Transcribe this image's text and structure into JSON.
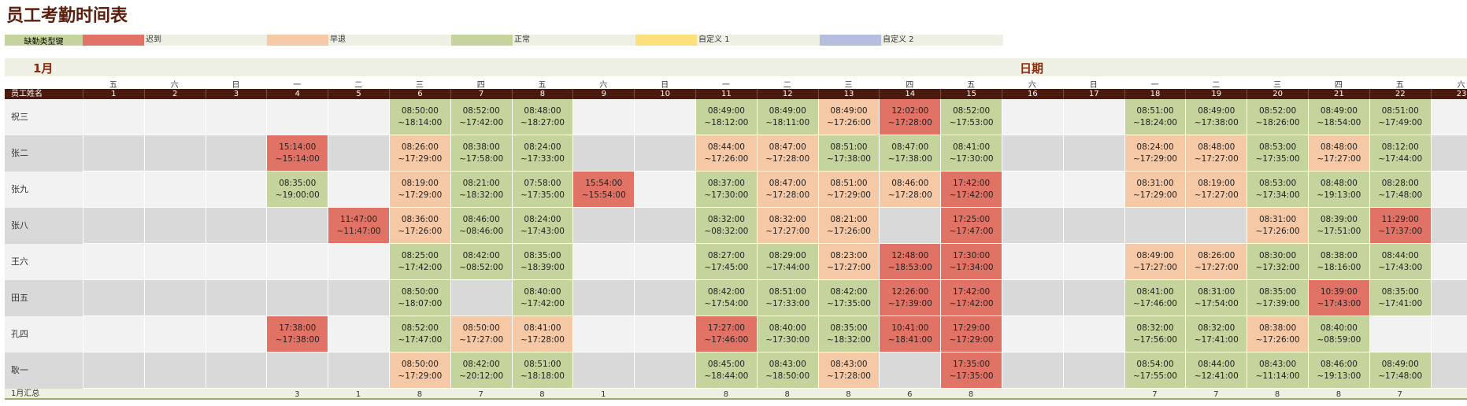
{
  "title": "员工考勤时间表",
  "legend": {
    "label": "缺勤类型键",
    "items": [
      {
        "name": "迟到",
        "color": "#e07366"
      },
      {
        "name": "早退",
        "color": "#f6c9a6"
      },
      {
        "name": "正常",
        "color": "#c4d49c"
      },
      {
        "name": "自定义 1",
        "color": "#fde07e"
      },
      {
        "name": "自定义 2",
        "color": "#b5bedd"
      }
    ]
  },
  "month": "1月",
  "date_label": "日期",
  "name_header": "员工姓名",
  "weekdays": [
    "五",
    "六",
    "日",
    "一",
    "二",
    "三",
    "四",
    "五",
    "六",
    "日",
    "一",
    "二",
    "三",
    "四",
    "五",
    "六",
    "日",
    "一",
    "二",
    "三",
    "四",
    "五",
    "六"
  ],
  "days": [
    1,
    2,
    3,
    4,
    5,
    6,
    7,
    8,
    9,
    10,
    11,
    12,
    13,
    14,
    15,
    16,
    17,
    18,
    19,
    20,
    21,
    22,
    23
  ],
  "rows": [
    {
      "name": "祝三",
      "cells": [
        null,
        null,
        null,
        null,
        null,
        {
          "in": "08:50:00",
          "out": "~18:14:00",
          "type": 2
        },
        {
          "in": "08:52:00",
          "out": "~17:42:00",
          "type": 2
        },
        {
          "in": "08:48:00",
          "out": "~18:27:00",
          "type": 2
        },
        null,
        null,
        {
          "in": "08:49:00",
          "out": "~18:12:00",
          "type": 2
        },
        {
          "in": "08:49:00",
          "out": "~18:11:00",
          "type": 2
        },
        {
          "in": "08:49:00",
          "out": "~17:26:00",
          "type": 1
        },
        {
          "in": "12:02:00",
          "out": "~17:28:00",
          "type": 0
        },
        {
          "in": "08:52:00",
          "out": "~17:53:00",
          "type": 2
        },
        null,
        null,
        {
          "in": "08:51:00",
          "out": "~18:24:00",
          "type": 2
        },
        {
          "in": "08:49:00",
          "out": "~17:38:00",
          "type": 2
        },
        {
          "in": "08:52:00",
          "out": "~18:26:00",
          "type": 2
        },
        {
          "in": "08:49:00",
          "out": "~18:54:00",
          "type": 2
        },
        {
          "in": "08:51:00",
          "out": "~17:49:00",
          "type": 2
        },
        null
      ]
    },
    {
      "name": "张二",
      "cells": [
        null,
        null,
        null,
        {
          "in": "15:14:00",
          "out": "~15:14:00",
          "type": 0
        },
        null,
        {
          "in": "08:26:00",
          "out": "~17:29:00",
          "type": 1
        },
        {
          "in": "08:38:00",
          "out": "~17:58:00",
          "type": 2
        },
        {
          "in": "08:24:00",
          "out": "~17:33:00",
          "type": 2
        },
        null,
        null,
        {
          "in": "08:44:00",
          "out": "~17:26:00",
          "type": 1
        },
        {
          "in": "08:47:00",
          "out": "~17:28:00",
          "type": 1
        },
        {
          "in": "08:51:00",
          "out": "~17:38:00",
          "type": 2
        },
        {
          "in": "08:47:00",
          "out": "~17:38:00",
          "type": 2
        },
        {
          "in": "08:41:00",
          "out": "~17:30:00",
          "type": 2
        },
        null,
        null,
        {
          "in": "08:24:00",
          "out": "~17:29:00",
          "type": 1
        },
        {
          "in": "08:48:00",
          "out": "~17:27:00",
          "type": 1
        },
        {
          "in": "08:53:00",
          "out": "~17:35:00",
          "type": 2
        },
        {
          "in": "08:48:00",
          "out": "~17:27:00",
          "type": 1
        },
        {
          "in": "08:12:00",
          "out": "~17:44:00",
          "type": 2
        },
        null
      ]
    },
    {
      "name": "张九",
      "cells": [
        null,
        null,
        null,
        {
          "in": "08:35:00",
          "out": "~19:00:00",
          "type": 2
        },
        null,
        {
          "in": "08:19:00",
          "out": "~17:29:00",
          "type": 1
        },
        {
          "in": "08:21:00",
          "out": "~18:32:00",
          "type": 2
        },
        {
          "in": "07:58:00",
          "out": "~17:35:00",
          "type": 2
        },
        {
          "in": "15:54:00",
          "out": "~15:54:00",
          "type": 0
        },
        null,
        {
          "in": "08:37:00",
          "out": "~17:30:00",
          "type": 2
        },
        {
          "in": "08:47:00",
          "out": "~17:28:00",
          "type": 1
        },
        {
          "in": "08:51:00",
          "out": "~17:29:00",
          "type": 1
        },
        {
          "in": "08:46:00",
          "out": "~17:28:00",
          "type": 1
        },
        {
          "in": "17:42:00",
          "out": "~17:42:00",
          "type": 0
        },
        null,
        null,
        {
          "in": "08:31:00",
          "out": "~17:29:00",
          "type": 1
        },
        {
          "in": "08:19:00",
          "out": "~17:27:00",
          "type": 1
        },
        {
          "in": "08:53:00",
          "out": "~17:34:00",
          "type": 2
        },
        {
          "in": "08:48:00",
          "out": "~19:13:00",
          "type": 2
        },
        {
          "in": "08:28:00",
          "out": "~17:48:00",
          "type": 2
        },
        null
      ]
    },
    {
      "name": "张八",
      "cells": [
        null,
        null,
        null,
        null,
        {
          "in": "11:47:00",
          "out": "~11:47:00",
          "type": 0
        },
        {
          "in": "08:36:00",
          "out": "~17:26:00",
          "type": 1
        },
        {
          "in": "08:46:00",
          "out": "~08:46:00",
          "type": 2
        },
        {
          "in": "08:24:00",
          "out": "~17:43:00",
          "type": 2
        },
        null,
        null,
        {
          "in": "08:32:00",
          "out": "~08:32:00",
          "type": 2
        },
        {
          "in": "08:32:00",
          "out": "~17:27:00",
          "type": 1
        },
        {
          "in": "08:21:00",
          "out": "~17:26:00",
          "type": 1
        },
        null,
        {
          "in": "17:25:00",
          "out": "~17:47:00",
          "type": 0
        },
        null,
        null,
        null,
        null,
        {
          "in": "08:31:00",
          "out": "~17:26:00",
          "type": 1
        },
        {
          "in": "08:39:00",
          "out": "~17:51:00",
          "type": 2
        },
        {
          "in": "11:29:00",
          "out": "~17:37:00",
          "type": 0
        },
        null
      ]
    },
    {
      "name": "王六",
      "cells": [
        null,
        null,
        null,
        null,
        null,
        {
          "in": "08:25:00",
          "out": "~17:42:00",
          "type": 2
        },
        {
          "in": "08:42:00",
          "out": "~08:52:00",
          "type": 2
        },
        {
          "in": "08:35:00",
          "out": "~18:39:00",
          "type": 2
        },
        null,
        null,
        {
          "in": "08:27:00",
          "out": "~17:45:00",
          "type": 2
        },
        {
          "in": "08:29:00",
          "out": "~17:44:00",
          "type": 2
        },
        {
          "in": "08:23:00",
          "out": "~17:27:00",
          "type": 1
        },
        {
          "in": "12:48:00",
          "out": "~18:53:00",
          "type": 0
        },
        {
          "in": "17:30:00",
          "out": "~17:34:00",
          "type": 0
        },
        null,
        null,
        {
          "in": "08:49:00",
          "out": "~17:27:00",
          "type": 1
        },
        {
          "in": "08:26:00",
          "out": "~17:27:00",
          "type": 1
        },
        {
          "in": "08:30:00",
          "out": "~17:32:00",
          "type": 2
        },
        {
          "in": "08:38:00",
          "out": "~18:16:00",
          "type": 2
        },
        {
          "in": "08:44:00",
          "out": "~17:43:00",
          "type": 2
        },
        null
      ]
    },
    {
      "name": "田五",
      "cells": [
        null,
        null,
        null,
        null,
        null,
        {
          "in": "08:50:00",
          "out": "~18:07:00",
          "type": 2
        },
        null,
        {
          "in": "08:40:00",
          "out": "~17:42:00",
          "type": 2
        },
        null,
        null,
        {
          "in": "08:42:00",
          "out": "~17:54:00",
          "type": 2
        },
        {
          "in": "08:51:00",
          "out": "~17:33:00",
          "type": 2
        },
        {
          "in": "08:42:00",
          "out": "~17:35:00",
          "type": 2
        },
        {
          "in": "12:26:00",
          "out": "~17:39:00",
          "type": 0
        },
        {
          "in": "17:42:00",
          "out": "~17:42:00",
          "type": 0
        },
        null,
        null,
        {
          "in": "08:41:00",
          "out": "~17:46:00",
          "type": 2
        },
        {
          "in": "08:31:00",
          "out": "~17:54:00",
          "type": 2
        },
        {
          "in": "08:35:00",
          "out": "~17:39:00",
          "type": 2
        },
        {
          "in": "10:39:00",
          "out": "~17:43:00",
          "type": 0
        },
        {
          "in": "08:35:00",
          "out": "~17:41:00",
          "type": 2
        },
        null
      ]
    },
    {
      "name": "孔四",
      "cells": [
        null,
        null,
        null,
        {
          "in": "17:38:00",
          "out": "~17:38:00",
          "type": 0
        },
        null,
        {
          "in": "08:52:00",
          "out": "~17:47:00",
          "type": 2
        },
        {
          "in": "08:50:00",
          "out": "~17:27:00",
          "type": 1
        },
        {
          "in": "08:41:00",
          "out": "~17:28:00",
          "type": 1
        },
        null,
        null,
        {
          "in": "17:27:00",
          "out": "~17:46:00",
          "type": 0
        },
        {
          "in": "08:40:00",
          "out": "~17:30:00",
          "type": 2
        },
        {
          "in": "08:35:00",
          "out": "~18:32:00",
          "type": 2
        },
        {
          "in": "10:41:00",
          "out": "~18:41:00",
          "type": 0
        },
        {
          "in": "17:29:00",
          "out": "~17:29:00",
          "type": 0
        },
        null,
        null,
        {
          "in": "08:32:00",
          "out": "~17:56:00",
          "type": 2
        },
        {
          "in": "08:32:00",
          "out": "~17:41:00",
          "type": 2
        },
        {
          "in": "08:38:00",
          "out": "~17:26:00",
          "type": 1
        },
        {
          "in": "08:40:00",
          "out": "~08:59:00",
          "type": 2
        },
        null,
        null
      ]
    },
    {
      "name": "耿一",
      "cells": [
        null,
        null,
        null,
        null,
        null,
        {
          "in": "08:50:00",
          "out": "~17:29:00",
          "type": 1
        },
        {
          "in": "08:42:00",
          "out": "~20:12:00",
          "type": 2
        },
        {
          "in": "08:51:00",
          "out": "~18:18:00",
          "type": 2
        },
        null,
        null,
        {
          "in": "08:45:00",
          "out": "~18:44:00",
          "type": 2
        },
        {
          "in": "08:43:00",
          "out": "~18:50:00",
          "type": 2
        },
        {
          "in": "08:43:00",
          "out": "~17:28:00",
          "type": 1
        },
        null,
        {
          "in": "17:35:00",
          "out": "~17:35:00",
          "type": 0
        },
        null,
        null,
        {
          "in": "08:54:00",
          "out": "~17:55:00",
          "type": 2
        },
        {
          "in": "08:44:00",
          "out": "~12:41:00",
          "type": 2
        },
        {
          "in": "08:43:00",
          "out": "~11:14:00",
          "type": 2
        },
        {
          "in": "08:46:00",
          "out": "~19:13:00",
          "type": 2
        },
        {
          "in": "08:49:00",
          "out": "~17:48:00",
          "type": 2
        },
        null
      ]
    }
  ],
  "summary": {
    "label": "1月汇总",
    "counts": [
      null,
      null,
      null,
      3,
      1,
      8,
      7,
      8,
      1,
      null,
      8,
      8,
      8,
      6,
      8,
      null,
      null,
      7,
      7,
      8,
      8,
      7,
      null
    ]
  }
}
